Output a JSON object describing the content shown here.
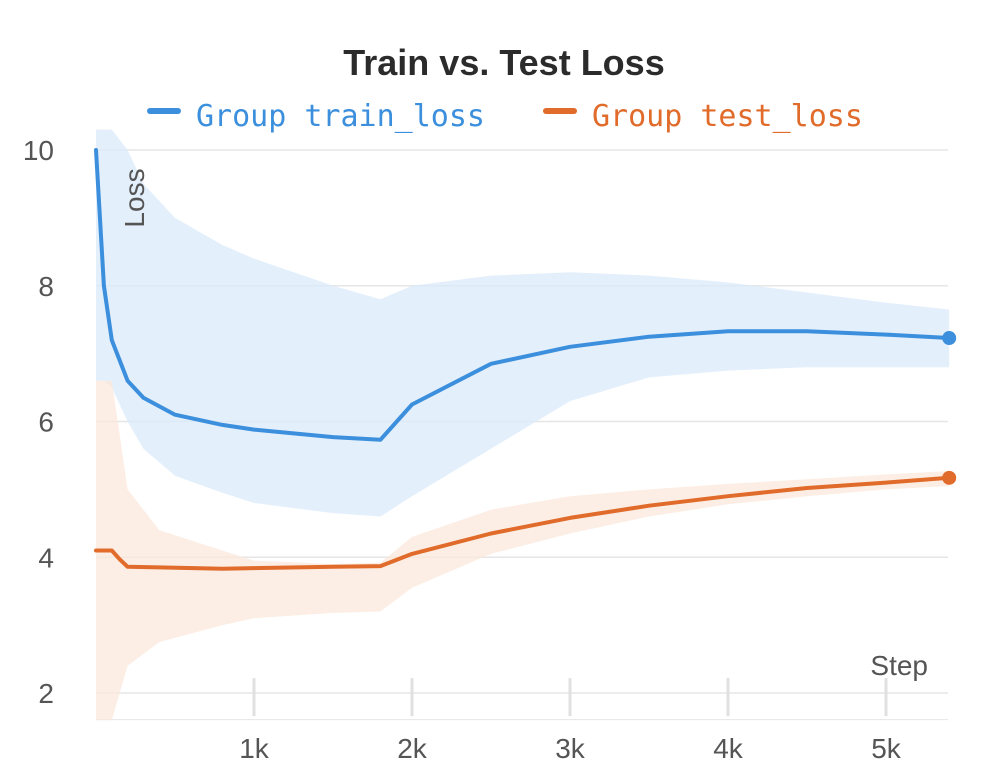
{
  "chart_data": {
    "type": "line",
    "title": "Train vs. Test Loss",
    "xlabel": "Step",
    "ylabel": "Loss",
    "xlim": [
      0,
      5400
    ],
    "ylim": [
      1.6,
      10.3
    ],
    "xticks": [
      1000,
      2000,
      3000,
      4000,
      5000
    ],
    "xtick_labels": [
      "1k",
      "2k",
      "3k",
      "4k",
      "5k"
    ],
    "yticks": [
      2,
      4,
      6,
      8,
      10
    ],
    "ytick_labels": [
      "2",
      "4",
      "6",
      "8",
      "10"
    ],
    "grid": "horizontal",
    "legend": "top",
    "series": [
      {
        "name": "Group train_loss",
        "color": "#3b8fdc",
        "band_color": "#dbeafb",
        "x": [
          0,
          50,
          100,
          200,
          300,
          500,
          800,
          1000,
          1500,
          1800,
          2000,
          2500,
          3000,
          3500,
          4000,
          4500,
          5000,
          5400
        ],
        "y": [
          10.0,
          8.0,
          7.2,
          6.6,
          6.35,
          6.1,
          5.95,
          5.88,
          5.77,
          5.73,
          6.25,
          6.85,
          7.1,
          7.25,
          7.33,
          7.33,
          7.28,
          7.23
        ],
        "upper": [
          10.3,
          10.3,
          10.3,
          10.0,
          9.5,
          9.0,
          8.6,
          8.4,
          8.0,
          7.8,
          8.0,
          8.15,
          8.2,
          8.15,
          8.05,
          7.9,
          7.75,
          7.65
        ],
        "lower": [
          6.6,
          6.6,
          6.5,
          6.0,
          5.6,
          5.2,
          4.95,
          4.8,
          4.65,
          4.6,
          4.9,
          5.6,
          6.3,
          6.65,
          6.75,
          6.8,
          6.8,
          6.8
        ]
      },
      {
        "name": "Group test_loss",
        "color": "#e06b2a",
        "band_color": "#fbe8db",
        "x": [
          0,
          100,
          150,
          200,
          400,
          800,
          1000,
          1500,
          1800,
          2000,
          2500,
          3000,
          3500,
          4000,
          4500,
          5000,
          5400
        ],
        "y": [
          4.1,
          4.1,
          3.97,
          3.86,
          3.85,
          3.83,
          3.84,
          3.86,
          3.87,
          4.05,
          4.35,
          4.58,
          4.76,
          4.9,
          5.02,
          5.1,
          5.17
        ],
        "upper": [
          6.6,
          6.6,
          5.8,
          5.0,
          4.4,
          4.1,
          3.95,
          3.9,
          3.92,
          4.3,
          4.7,
          4.9,
          5.0,
          5.08,
          5.15,
          5.22,
          5.27
        ],
        "lower": [
          1.6,
          1.6,
          2.0,
          2.4,
          2.75,
          3.0,
          3.1,
          3.18,
          3.2,
          3.55,
          4.05,
          4.35,
          4.6,
          4.78,
          4.9,
          5.0,
          5.05
        ]
      }
    ]
  }
}
